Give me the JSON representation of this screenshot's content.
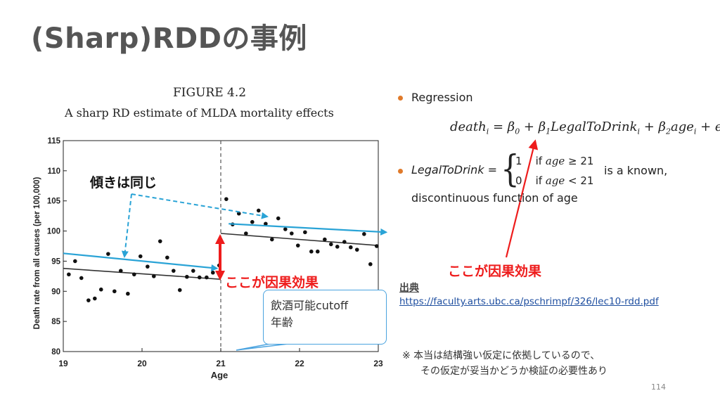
{
  "slide": {
    "title": "(Sharp)RDDの事例",
    "page_number": "114"
  },
  "figure": {
    "title": "FIGURE 4.2",
    "subtitle": "A sharp RD estimate of MLDA mortality effects",
    "ylabel": "Death rate from all causes (per 100,000)",
    "xlabel": "Age",
    "cutoff_label": "21"
  },
  "chart_data": {
    "type": "scatter",
    "title": "FIGURE 4.2",
    "subtitle": "A sharp RD estimate of MLDA mortality effects",
    "xlabel": "Age",
    "ylabel": "Death rate from all causes (per 100,000)",
    "xlim": [
      19,
      23
    ],
    "ylim": [
      80,
      115
    ],
    "x_ticks": [
      19,
      20,
      21,
      22,
      23
    ],
    "y_ticks": [
      80,
      85,
      90,
      95,
      100,
      105,
      110,
      115
    ],
    "cutoff": 21,
    "grid": false,
    "points": [
      [
        19.07,
        92.8
      ],
      [
        19.15,
        95.0
      ],
      [
        19.23,
        92.2
      ],
      [
        19.32,
        88.5
      ],
      [
        19.4,
        88.8
      ],
      [
        19.48,
        90.3
      ],
      [
        19.57,
        96.2
      ],
      [
        19.65,
        90.0
      ],
      [
        19.73,
        93.4
      ],
      [
        19.82,
        89.6
      ],
      [
        19.9,
        92.8
      ],
      [
        19.98,
        95.8
      ],
      [
        20.07,
        94.1
      ],
      [
        20.15,
        92.5
      ],
      [
        20.23,
        98.3
      ],
      [
        20.32,
        95.6
      ],
      [
        20.4,
        93.4
      ],
      [
        20.48,
        90.2
      ],
      [
        20.57,
        92.4
      ],
      [
        20.65,
        93.4
      ],
      [
        20.73,
        92.3
      ],
      [
        20.82,
        92.3
      ],
      [
        20.9,
        93.1
      ],
      [
        20.98,
        94.3
      ],
      [
        21.07,
        105.3
      ],
      [
        21.15,
        101.1
      ],
      [
        21.23,
        102.9
      ],
      [
        21.32,
        99.6
      ],
      [
        21.4,
        101.5
      ],
      [
        21.48,
        103.4
      ],
      [
        21.57,
        101.2
      ],
      [
        21.65,
        98.6
      ],
      [
        21.73,
        102.1
      ],
      [
        21.82,
        100.3
      ],
      [
        21.9,
        99.6
      ],
      [
        21.98,
        97.6
      ],
      [
        22.07,
        99.8
      ],
      [
        22.15,
        96.6
      ],
      [
        22.23,
        96.6
      ],
      [
        22.32,
        98.6
      ],
      [
        22.4,
        97.8
      ],
      [
        22.48,
        97.4
      ],
      [
        22.57,
        98.2
      ],
      [
        22.65,
        97.3
      ],
      [
        22.73,
        96.9
      ],
      [
        22.82,
        99.5
      ],
      [
        22.9,
        94.5
      ],
      [
        22.98,
        97.5
      ]
    ],
    "fit_lines": [
      {
        "x": [
          19,
          21
        ],
        "y": [
          93.8,
          92.0
        ],
        "color": "#333333"
      },
      {
        "x": [
          21,
          23
        ],
        "y": [
          99.6,
          97.6
        ],
        "color": "#333333"
      }
    ],
    "overlay_lines": [
      {
        "x": [
          19.0,
          20.95
        ],
        "y": [
          96.3,
          93.8
        ],
        "color": "#29a3d6"
      },
      {
        "x": [
          21.1,
          23.1
        ],
        "y": [
          101.2,
          99.8
        ],
        "color": "#29a3d6"
      }
    ]
  },
  "annotations": {
    "slope_label": "傾きは同じ",
    "effect_label_1": "ここが因果効果",
    "effect_label_2": "ここが因果効果",
    "callout_line1": "飲酒可能cutoff",
    "callout_line2": "年齢"
  },
  "right_panel": {
    "bullet1": "Regression",
    "equation_parts": [
      "death",
      "i",
      " = β",
      "0",
      " + β",
      "1",
      "LegalToDrink",
      "i",
      " + β",
      "2",
      "age",
      "i",
      " + ϵ",
      "i"
    ],
    "bullet2_label": "LegalToDrink =",
    "case1_value": "1",
    "case1_cond_pre": "if ",
    "case1_cond_var": "age",
    "case1_cond_op": " ≥ 21",
    "case2_value": "0",
    "case2_cond_pre": "if ",
    "case2_cond_var": "age",
    "case2_cond_op": " < 21",
    "known_text": "is a known,",
    "disc_text": "discontinuous function of age"
  },
  "source": {
    "heading": "出典",
    "url": "https://faculty.arts.ubc.ca/pschrimpf/326/lec10-rdd.pdf"
  },
  "note": {
    "line1": "※  本当は結構強い仮定に依拠しているので、",
    "line2": "その仮定が妥当かどうか検証の必要性あり"
  },
  "colors": {
    "title": "#555555",
    "red": "#ee1c1c",
    "blue": "#29a3d6",
    "bullet": "#e07a2a"
  }
}
